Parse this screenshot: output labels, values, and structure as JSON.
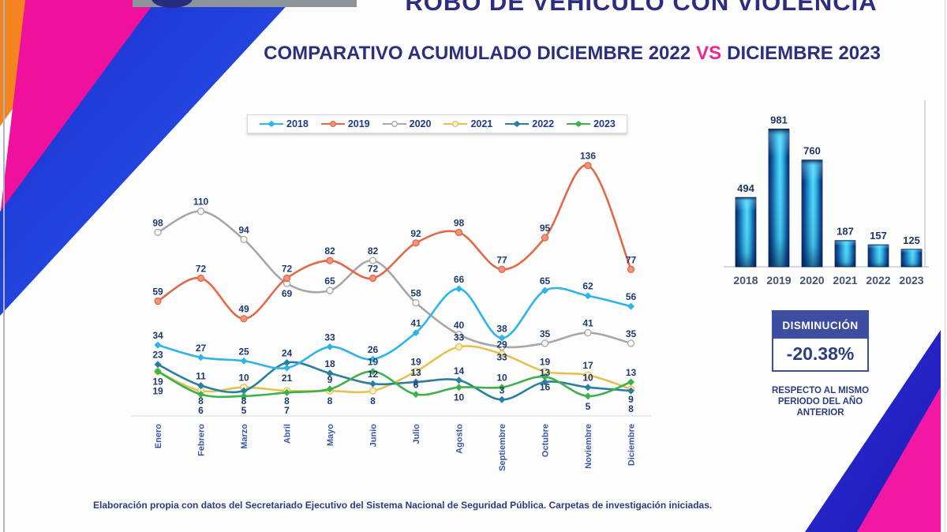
{
  "page": {
    "title": "ROBO DE VEHÍCULO CON VIOLENCIA",
    "subtitle_prefix": "COMPARATIVO ACUMULADO DICIEMBRE 2022",
    "subtitle_vs": "VS",
    "subtitle_suffix": "DICIEMBRE 2023",
    "footer": "Elaboración propia con datos del Secretariado Ejecutivo del Sistema Nacional de Seguridad Pública. Carpetas de investigación iniciadas."
  },
  "badge": {
    "header": "DISMINUCIÓN",
    "value": "-20.38%",
    "caption": "RESPECTO AL MISMO PERIODO DEL AÑO ANTERIOR"
  },
  "colors": {
    "title_navy": "#2e2e80",
    "vs_pink": "#ec2890",
    "label_navy": "#1e3a70",
    "badge_navy": "#3d4d9f",
    "decor_orange": "#f5831f",
    "decor_pink": "#ef109e",
    "decor_blue": "#2338d6"
  },
  "chart_data": [
    {
      "type": "line",
      "title": "",
      "categories": [
        "Enero",
        "Febrero",
        "Marzo",
        "Abril",
        "Mayo",
        "Junio",
        "Julio",
        "Agosto",
        "Septiembre",
        "Octubre",
        "Noviembre",
        "Diciembre"
      ],
      "series": [
        {
          "name": "2018",
          "color": "#2fb4e8",
          "marker": "diamond",
          "values": [
            34,
            27,
            25,
            21,
            33,
            26,
            41,
            66,
            38,
            65,
            62,
            56
          ]
        },
        {
          "name": "2019",
          "color": "#e06a48",
          "marker": "circle",
          "marker_fill": "#f0957a",
          "values": [
            59,
            72,
            49,
            72,
            82,
            72,
            92,
            98,
            77,
            95,
            136,
            77
          ]
        },
        {
          "name": "2020",
          "color": "#a7a7a7",
          "marker": "circle",
          "marker_fill": "#fdfdf6",
          "values": [
            98,
            110,
            94,
            69,
            65,
            82,
            58,
            40,
            33,
            35,
            41,
            35
          ]
        },
        {
          "name": "2021",
          "color": "#e5c24f",
          "marker": "circle",
          "marker_fill": "#f9f0c8",
          "values": [
            19,
            8,
            10,
            8,
            8,
            8,
            19,
            33,
            29,
            19,
            17,
            9
          ]
        },
        {
          "name": "2022",
          "color": "#2a7fa0",
          "marker": "diamond",
          "values": [
            23,
            11,
            8,
            24,
            18,
            12,
            13,
            14,
            3,
            13,
            10,
            8
          ]
        },
        {
          "name": "2023",
          "color": "#3fb14c",
          "marker": "diamond",
          "values": [
            19,
            6,
            5,
            7,
            9,
            19,
            6,
            10,
            10,
            16,
            5,
            13
          ]
        }
      ],
      "legend_position": "top",
      "grid": false,
      "ylim": [
        0,
        145
      ]
    },
    {
      "type": "bar",
      "categories": [
        "2018",
        "2019",
        "2020",
        "2021",
        "2022",
        "2023"
      ],
      "values": [
        494,
        981,
        760,
        187,
        157,
        125
      ],
      "title": "",
      "xlabel": "",
      "ylabel": "",
      "ylim": [
        0,
        1050
      ],
      "bar_colors": [
        "#07275c",
        "#0b4c97",
        "#2fb9ea",
        "#55d6f6"
      ]
    }
  ]
}
